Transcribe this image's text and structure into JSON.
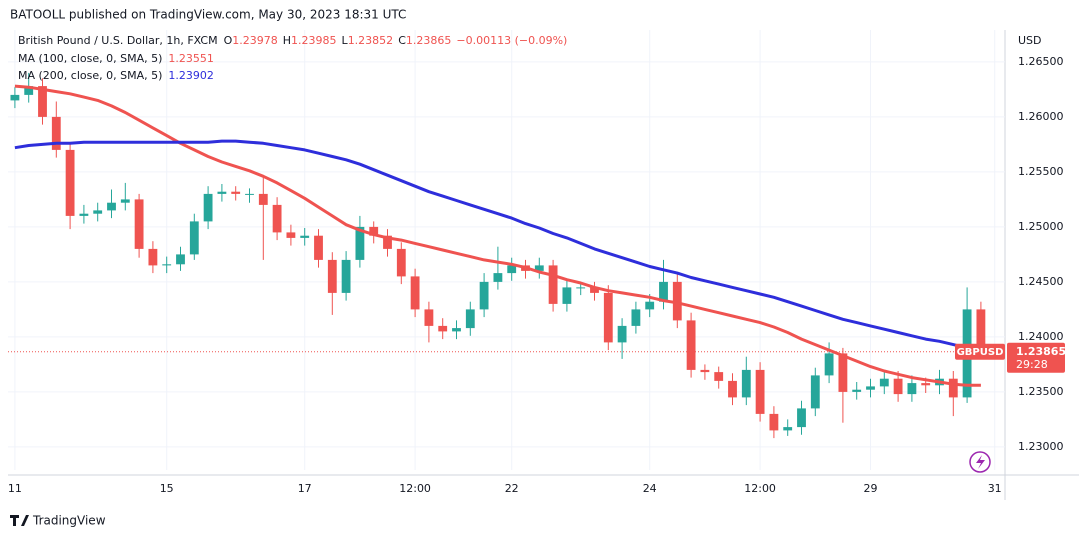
{
  "header": {
    "publisher": "BATOOLL published on TradingView.com, May 30, 2023 18:31 UTC"
  },
  "footer": {
    "brand": "TradingView"
  },
  "chart_data": {
    "type": "candlestick",
    "currency": "USD",
    "legend": {
      "symbol": "British Pound / U.S. Dollar, 1h, FXCM",
      "items": [
        {
          "label": "O",
          "value": "1.23978"
        },
        {
          "label": "H",
          "value": "1.23985"
        },
        {
          "label": "L",
          "value": "1.23852"
        },
        {
          "label": "C",
          "value": "1.23865"
        }
      ],
      "change": "−0.00113 (−0.09%)"
    },
    "categories": [
      "11",
      null,
      null,
      null,
      null,
      null,
      null,
      null,
      null,
      null,
      null,
      "15",
      null,
      null,
      null,
      null,
      null,
      null,
      null,
      null,
      null,
      "17",
      null,
      null,
      null,
      null,
      null,
      null,
      null,
      "12:00",
      null,
      null,
      null,
      null,
      null,
      null,
      "22",
      null,
      null,
      null,
      null,
      null,
      null,
      null,
      null,
      null,
      "24",
      null,
      null,
      null,
      null,
      null,
      null,
      null,
      "12:00",
      null,
      null,
      null,
      null,
      null,
      null,
      null,
      "29",
      null,
      null,
      null,
      null,
      null,
      null,
      null,
      null,
      "31"
    ],
    "open": [
      1.2615,
      1.262,
      1.2628,
      1.26,
      1.257,
      1.251,
      1.2512,
      1.2515,
      1.2522,
      1.2525,
      1.248,
      1.2465,
      1.2466,
      1.2475,
      1.2505,
      1.253,
      1.2532,
      1.253,
      1.253,
      1.252,
      1.2495,
      1.249,
      1.2492,
      1.247,
      1.244,
      1.247,
      1.25,
      1.2492,
      1.248,
      1.2455,
      1.2425,
      1.241,
      1.2405,
      1.2408,
      1.2425,
      1.245,
      1.2458,
      1.2465,
      1.246,
      1.2465,
      1.243,
      1.2445,
      1.2445,
      1.244,
      1.2395,
      1.241,
      1.2425,
      1.2432,
      1.245,
      1.2415,
      1.237,
      1.2368,
      1.236,
      1.2345,
      1.237,
      1.233,
      1.2315,
      1.2318,
      1.2335,
      1.2365,
      1.2385,
      1.235,
      1.2352,
      1.2355,
      1.2362,
      1.2348,
      1.2358,
      1.2356,
      1.2362,
      1.2345,
      1.2425,
      null
    ],
    "high": [
      1.2627,
      1.264,
      1.2635,
      1.2614,
      1.2577,
      1.252,
      1.2522,
      1.2534,
      1.254,
      1.253,
      1.2487,
      1.2473,
      1.2482,
      1.2512,
      1.2537,
      1.2539,
      1.2537,
      1.2535,
      1.2545,
      1.2527,
      1.2502,
      1.2499,
      1.2498,
      1.2477,
      1.2478,
      1.251,
      1.2505,
      1.2498,
      1.2486,
      1.2462,
      1.2432,
      1.2417,
      1.2415,
      1.2432,
      1.2458,
      1.2482,
      1.2472,
      1.247,
      1.2472,
      1.247,
      1.2452,
      1.245,
      1.245,
      1.2447,
      1.2417,
      1.2432,
      1.2439,
      1.247,
      1.2457,
      1.2422,
      1.2375,
      1.2373,
      1.2367,
      1.2382,
      1.2377,
      1.2337,
      1.2325,
      1.2342,
      1.2372,
      1.2395,
      1.239,
      1.2359,
      1.2362,
      1.237,
      1.2369,
      1.2365,
      1.2363,
      1.237,
      1.2369,
      1.2445,
      1.2432,
      null
    ],
    "low": [
      1.2608,
      1.2613,
      1.2593,
      1.2563,
      1.2498,
      1.2503,
      1.2505,
      1.2508,
      1.2515,
      1.2472,
      1.2458,
      1.2458,
      1.246,
      1.247,
      1.2498,
      1.2523,
      1.2524,
      1.2522,
      1.247,
      1.2488,
      1.2483,
      1.2483,
      1.2463,
      1.242,
      1.2433,
      1.2463,
      1.2485,
      1.2473,
      1.2448,
      1.2418,
      1.2395,
      1.2398,
      1.2398,
      1.2401,
      1.2418,
      1.2443,
      1.2451,
      1.2453,
      1.2453,
      1.2423,
      1.2423,
      1.2438,
      1.2433,
      1.2388,
      1.238,
      1.2403,
      1.2418,
      1.2425,
      1.2408,
      1.2363,
      1.2361,
      1.2353,
      1.2338,
      1.2338,
      1.2323,
      1.2308,
      1.231,
      1.2311,
      1.2328,
      1.2358,
      1.2322,
      1.2343,
      1.2345,
      1.2348,
      1.2341,
      1.2341,
      1.2349,
      1.2348,
      1.2328,
      1.234,
      1.2383,
      null
    ],
    "close": [
      1.262,
      1.2628,
      1.26,
      1.257,
      1.251,
      1.2512,
      1.2515,
      1.2522,
      1.2525,
      1.248,
      1.2465,
      1.2466,
      1.2475,
      1.2505,
      1.253,
      1.2532,
      1.253,
      1.253,
      1.252,
      1.2495,
      1.249,
      1.2492,
      1.247,
      1.244,
      1.247,
      1.25,
      1.2492,
      1.248,
      1.2455,
      1.2425,
      1.241,
      1.2405,
      1.2408,
      1.2425,
      1.245,
      1.2458,
      1.2465,
      1.246,
      1.2465,
      1.243,
      1.2445,
      1.2445,
      1.244,
      1.2395,
      1.241,
      1.2425,
      1.2432,
      1.245,
      1.2415,
      1.237,
      1.2368,
      1.236,
      1.2345,
      1.237,
      1.233,
      1.2315,
      1.2318,
      1.2335,
      1.2365,
      1.2385,
      1.235,
      1.2352,
      1.2355,
      1.2362,
      1.2348,
      1.2358,
      1.2356,
      1.2362,
      1.2345,
      1.2425,
      1.23865,
      null
    ],
    "up_color": "#26a69a",
    "down_color": "#ef5350",
    "series": [
      {
        "name": "MA (100, close, 0, SMA, 5)",
        "value_label": "1.23551",
        "color": "#ef5350",
        "values": [
          1.2628,
          1.2627,
          1.2625,
          1.2623,
          1.2621,
          1.2618,
          1.2615,
          1.261,
          1.2604,
          1.2597,
          1.259,
          1.2583,
          1.2576,
          1.257,
          1.2564,
          1.2559,
          1.2555,
          1.2551,
          1.2546,
          1.254,
          1.2533,
          1.2526,
          1.2518,
          1.251,
          1.2502,
          1.2497,
          1.2493,
          1.249,
          1.2488,
          1.2485,
          1.2482,
          1.2479,
          1.2476,
          1.2473,
          1.247,
          1.2468,
          1.2466,
          1.2463,
          1.2459,
          1.2456,
          1.2452,
          1.2449,
          1.2445,
          1.2442,
          1.244,
          1.2438,
          1.2436,
          1.2433,
          1.2431,
          1.2428,
          1.2425,
          1.2422,
          1.2419,
          1.2416,
          1.2413,
          1.2409,
          1.2404,
          1.2398,
          1.2393,
          1.2388,
          1.2383,
          1.2378,
          1.2373,
          1.2369,
          1.2366,
          1.2363,
          1.2361,
          1.2359,
          1.2357,
          1.2356,
          1.2356,
          null
        ]
      },
      {
        "name": "MA (200, close, 0, SMA, 5)",
        "value_label": "1.23902",
        "color": "#2e2edb",
        "values": [
          1.2572,
          1.2574,
          1.2575,
          1.2576,
          1.2576,
          1.2577,
          1.2577,
          1.2577,
          1.2577,
          1.2577,
          1.2577,
          1.2577,
          1.2577,
          1.2577,
          1.2577,
          1.2578,
          1.2578,
          1.2577,
          1.2576,
          1.2574,
          1.2572,
          1.257,
          1.2567,
          1.2564,
          1.2561,
          1.2557,
          1.2552,
          1.2547,
          1.2542,
          1.2537,
          1.2532,
          1.2528,
          1.2524,
          1.252,
          1.2516,
          1.2512,
          1.2508,
          1.2503,
          1.2499,
          1.2494,
          1.249,
          1.2485,
          1.248,
          1.2476,
          1.2472,
          1.2468,
          1.2464,
          1.2461,
          1.2458,
          1.2454,
          1.2451,
          1.2448,
          1.2445,
          1.2442,
          1.2439,
          1.2436,
          1.2432,
          1.2428,
          1.2424,
          1.242,
          1.2416,
          1.2413,
          1.241,
          1.2407,
          1.2404,
          1.2401,
          1.2398,
          1.2396,
          1.2393,
          1.239,
          null,
          null
        ]
      }
    ],
    "last_price": {
      "value": 1.23865,
      "label": "1.23865",
      "symbol": "GBPUSD",
      "countdown": "29:28"
    },
    "ylim": [
      1.2279,
      1.2679
    ],
    "yticks": [
      {
        "value": 1.23,
        "label": "1.23000"
      },
      {
        "value": 1.235,
        "label": "1.23500"
      },
      {
        "value": 1.24,
        "label": "1.24000"
      },
      {
        "value": 1.245,
        "label": "1.24500"
      },
      {
        "value": 1.25,
        "label": "1.25000"
      },
      {
        "value": 1.255,
        "label": "1.25500"
      },
      {
        "value": 1.26,
        "label": "1.26000"
      },
      {
        "value": 1.265,
        "label": "1.26500"
      }
    ],
    "grid": true
  }
}
